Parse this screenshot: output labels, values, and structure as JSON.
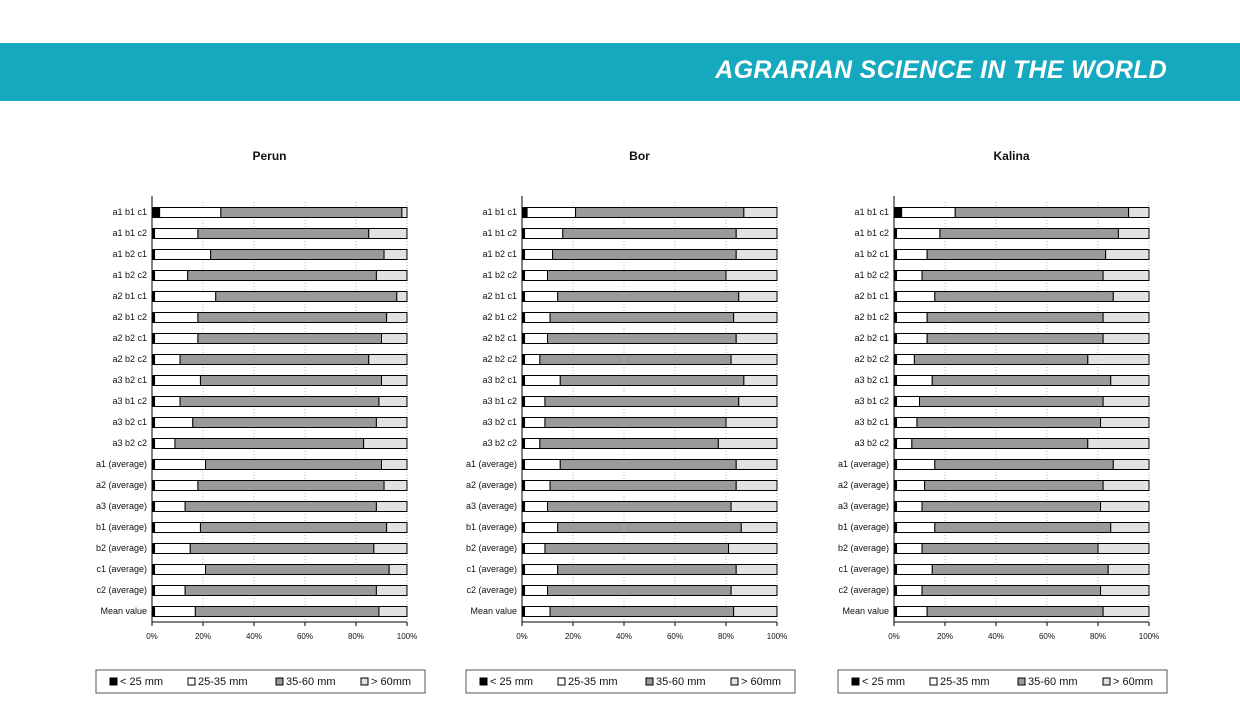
{
  "header": {
    "title": "AGRARIAN SCIENCE IN THE WORLD"
  },
  "chart_data": [
    {
      "type": "stacked_bar_h",
      "title": "Perun",
      "categories": [
        "a1 b1 c1",
        "a1 b1 c2",
        "a1 b2 c1",
        "a1 b2 c2",
        "a2 b1 c1",
        "a2 b1 c2",
        "a2 b2 c1",
        "a2 b2 c2",
        "a3 b2 c1",
        "a3 b1 c2",
        "a3 b2 c1",
        "a3 b2 c2",
        "a1 (average)",
        "a2 (average)",
        "a3 (average)",
        "b1 (average)",
        "b2 (average)",
        "c1 (average)",
        "c2 (average)",
        "Mean value"
      ],
      "series": [
        {
          "name": "< 25 mm",
          "color": "#000000",
          "values": [
            3,
            1,
            1,
            1,
            1,
            1,
            1,
            1,
            1,
            1,
            1,
            1,
            1,
            1,
            1,
            1,
            1,
            1,
            1,
            1
          ]
        },
        {
          "name": "25-35 mm",
          "color": "#ffffff",
          "values": [
            24,
            17,
            22,
            13,
            24,
            17,
            17,
            10,
            18,
            10,
            15,
            8,
            20,
            17,
            12,
            18,
            14,
            20,
            12,
            16
          ]
        },
        {
          "name": "35-60 mm",
          "color": "#9a9a9a",
          "values": [
            71,
            67,
            68,
            74,
            71,
            74,
            72,
            74,
            71,
            78,
            72,
            74,
            69,
            73,
            75,
            73,
            72,
            72,
            75,
            72
          ]
        },
        {
          "name": "> 60mm",
          "color": "#e2e2e2",
          "values": [
            2,
            15,
            9,
            12,
            4,
            8,
            10,
            15,
            10,
            11,
            12,
            17,
            10,
            9,
            12,
            8,
            13,
            7,
            12,
            11
          ]
        }
      ],
      "xlim": [
        0,
        100
      ],
      "xticks": [
        {
          "value": 0,
          "label": "0%"
        },
        {
          "value": 20,
          "label": "20%"
        },
        {
          "value": 40,
          "label": "40%"
        },
        {
          "value": 60,
          "label": "60%"
        },
        {
          "value": 80,
          "label": "80%"
        },
        {
          "value": 100,
          "label": "100%"
        }
      ],
      "grid": true
    },
    {
      "type": "stacked_bar_h",
      "title": "Bor",
      "categories": [
        "a1 b1 c1",
        "a1 b1 c2",
        "a1 b2 c1",
        "a1 b2 c2",
        "a2 b1 c1",
        "a2 b1 c2",
        "a2 b2 c1",
        "a2 b2 c2",
        "a3 b2 c1",
        "a3 b1 c2",
        "a3 b2 c1",
        "a3 b2 c2",
        "a1 (average)",
        "a2 (average)",
        "a3 (average)",
        "b1 (average)",
        "b2 (average)",
        "c1 (average)",
        "c2 (average)",
        "Mean value"
      ],
      "series": [
        {
          "name": "< 25 mm",
          "color": "#000000",
          "values": [
            2,
            1,
            1,
            1,
            1,
            1,
            1,
            1,
            1,
            1,
            1,
            1,
            1,
            1,
            1,
            1,
            1,
            1,
            1,
            1
          ]
        },
        {
          "name": "25-35 mm",
          "color": "#ffffff",
          "values": [
            19,
            15,
            11,
            9,
            13,
            10,
            9,
            6,
            14,
            8,
            8,
            6,
            14,
            10,
            9,
            13,
            8,
            13,
            9,
            10
          ]
        },
        {
          "name": "35-60 mm",
          "color": "#9a9a9a",
          "values": [
            66,
            68,
            72,
            70,
            71,
            72,
            74,
            75,
            72,
            76,
            71,
            70,
            69,
            73,
            72,
            72,
            72,
            70,
            72,
            72
          ]
        },
        {
          "name": "> 60mm",
          "color": "#e2e2e2",
          "values": [
            13,
            16,
            16,
            20,
            15,
            17,
            16,
            18,
            13,
            15,
            20,
            23,
            16,
            16,
            18,
            14,
            19,
            16,
            18,
            17
          ]
        }
      ],
      "xlim": [
        0,
        100
      ],
      "xticks": [
        {
          "value": 0,
          "label": "0%"
        },
        {
          "value": 20,
          "label": "20%"
        },
        {
          "value": 40,
          "label": "40%"
        },
        {
          "value": 60,
          "label": "60%"
        },
        {
          "value": 80,
          "label": "80%"
        },
        {
          "value": 100,
          "label": "100%"
        }
      ],
      "grid": true
    },
    {
      "type": "stacked_bar_h",
      "title": "Kalina",
      "categories": [
        "a1 b1 c1",
        "a1 b1 c2",
        "a1 b2 c1",
        "a1 b2 c2",
        "a2 b1 c1",
        "a2 b1 c2",
        "a2 b2 c1",
        "a2 b2 c2",
        "a3 b2 c1",
        "a3 b1 c2",
        "a3 b2 c1",
        "a3 b2 c2",
        "a1 (average)",
        "a2 (average)",
        "a3 (average)",
        "b1 (average)",
        "b2 (average)",
        "c1 (average)",
        "c2 (average)",
        "Mean value"
      ],
      "series": [
        {
          "name": "< 25 mm",
          "color": "#000000",
          "values": [
            3,
            1,
            1,
            1,
            1,
            1,
            1,
            1,
            1,
            1,
            1,
            1,
            1,
            1,
            1,
            1,
            1,
            1,
            1,
            1
          ]
        },
        {
          "name": "25-35 mm",
          "color": "#ffffff",
          "values": [
            21,
            17,
            12,
            10,
            15,
            12,
            12,
            7,
            14,
            9,
            8,
            6,
            15,
            11,
            10,
            15,
            10,
            14,
            10,
            12
          ]
        },
        {
          "name": "35-60 mm",
          "color": "#9a9a9a",
          "values": [
            68,
            70,
            70,
            71,
            70,
            69,
            69,
            68,
            70,
            72,
            72,
            69,
            70,
            70,
            70,
            69,
            69,
            69,
            70,
            69
          ]
        },
        {
          "name": "> 60mm",
          "color": "#e2e2e2",
          "values": [
            8,
            12,
            17,
            18,
            14,
            18,
            18,
            24,
            15,
            18,
            19,
            24,
            14,
            18,
            19,
            15,
            20,
            16,
            19,
            18
          ]
        }
      ],
      "xlim": [
        0,
        100
      ],
      "xticks": [
        {
          "value": 0,
          "label": "0%"
        },
        {
          "value": 20,
          "label": "20%"
        },
        {
          "value": 40,
          "label": "40%"
        },
        {
          "value": 60,
          "label": "60%"
        },
        {
          "value": 80,
          "label": "80%"
        },
        {
          "value": 100,
          "label": "100%"
        }
      ],
      "grid": true
    }
  ]
}
